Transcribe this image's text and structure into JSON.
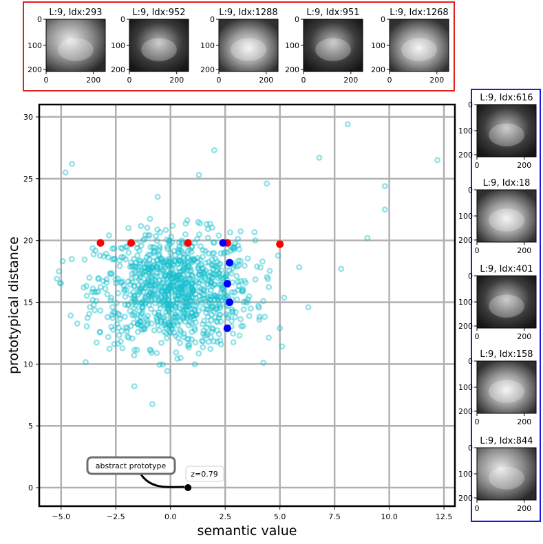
{
  "chart_data": {
    "type": "scatter",
    "xlabel": "semantic value",
    "ylabel": "prototypical distance",
    "xlim": [
      -6.0,
      13.0
    ],
    "ylim": [
      -1.5,
      31.0
    ],
    "x_ticks": [
      -5.0,
      -2.5,
      0.0,
      2.5,
      5.0,
      7.5,
      10.0,
      12.5
    ],
    "x_tick_labels": [
      "−5.0",
      "−2.5",
      "0.0",
      "2.5",
      "5.0",
      "7.5",
      "10.0",
      "12.5"
    ],
    "y_ticks": [
      0,
      5,
      10,
      15,
      20,
      25,
      30
    ],
    "y_tick_labels": [
      "0",
      "5",
      "10",
      "15",
      "20",
      "25",
      "30"
    ],
    "grid": true,
    "series": [
      {
        "color": "#17becf",
        "style": "translucent ring markers",
        "approx_count": 1000,
        "distribution": "dense cloud centered near (0, 16), x mostly in [-4, 6], y mostly in [11, 22]",
        "outliers": [
          [
            8.1,
            29.4
          ],
          [
            12.2,
            26.5
          ],
          [
            6.8,
            26.7
          ],
          [
            -4.5,
            26.2
          ],
          [
            -4.8,
            25.5
          ],
          [
            9.8,
            24.4
          ],
          [
            9.8,
            22.5
          ],
          [
            9.0,
            20.2
          ],
          [
            7.8,
            17.7
          ],
          [
            -5.1,
            17.5
          ],
          [
            6.3,
            14.6
          ],
          [
            5.0,
            12.9
          ],
          [
            4.4,
            24.6
          ],
          [
            2.0,
            27.3
          ],
          [
            1.3,
            25.3
          ],
          [
            -2.7,
            13.0
          ],
          [
            0.8,
            11.5
          ]
        ]
      },
      {
        "color": "#ff0000",
        "points": [
          [
            -3.2,
            19.8
          ],
          [
            -1.8,
            19.8
          ],
          [
            0.8,
            19.8
          ],
          [
            2.6,
            19.8
          ],
          [
            5.0,
            19.7
          ]
        ]
      },
      {
        "color": "#0000ff",
        "points": [
          [
            2.4,
            19.8
          ],
          [
            2.7,
            18.2
          ],
          [
            2.6,
            16.5
          ],
          [
            2.7,
            15.0
          ],
          [
            2.6,
            12.9
          ]
        ]
      }
    ],
    "prototype_point": {
      "x": 0.8,
      "y": 0.0,
      "color": "#000000"
    },
    "annotations": [
      {
        "text": "abstract prototype",
        "style": "rounded box, gray border, arrow to prototype"
      },
      {
        "text": "z=0.79",
        "style": "light box"
      }
    ]
  },
  "thumbnails_top": [
    {
      "title": "L:9, Idx:293"
    },
    {
      "title": "L:9, Idx:952"
    },
    {
      "title": "L:9, Idx:1288"
    },
    {
      "title": "L:9, Idx:951"
    },
    {
      "title": "L:9, Idx:1268"
    }
  ],
  "thumbnails_right": [
    {
      "title": "L:9, Idx:616"
    },
    {
      "title": "L:9, Idx:18"
    },
    {
      "title": "L:9, Idx:401"
    },
    {
      "title": "L:9, Idx:158"
    },
    {
      "title": "L:9, Idx:844"
    }
  ],
  "thumb_axes": {
    "x_tick_labels": [
      "0",
      "200"
    ],
    "y_tick_labels": [
      "0",
      "100",
      "200"
    ]
  },
  "colors": {
    "top_panel_border": "#e0201e",
    "right_panel_border": "#1a1ae6",
    "scatter_main": "#17becf",
    "highlight_red": "#ff0000",
    "highlight_blue": "#0000ff",
    "grid": "#b0b0b0"
  }
}
